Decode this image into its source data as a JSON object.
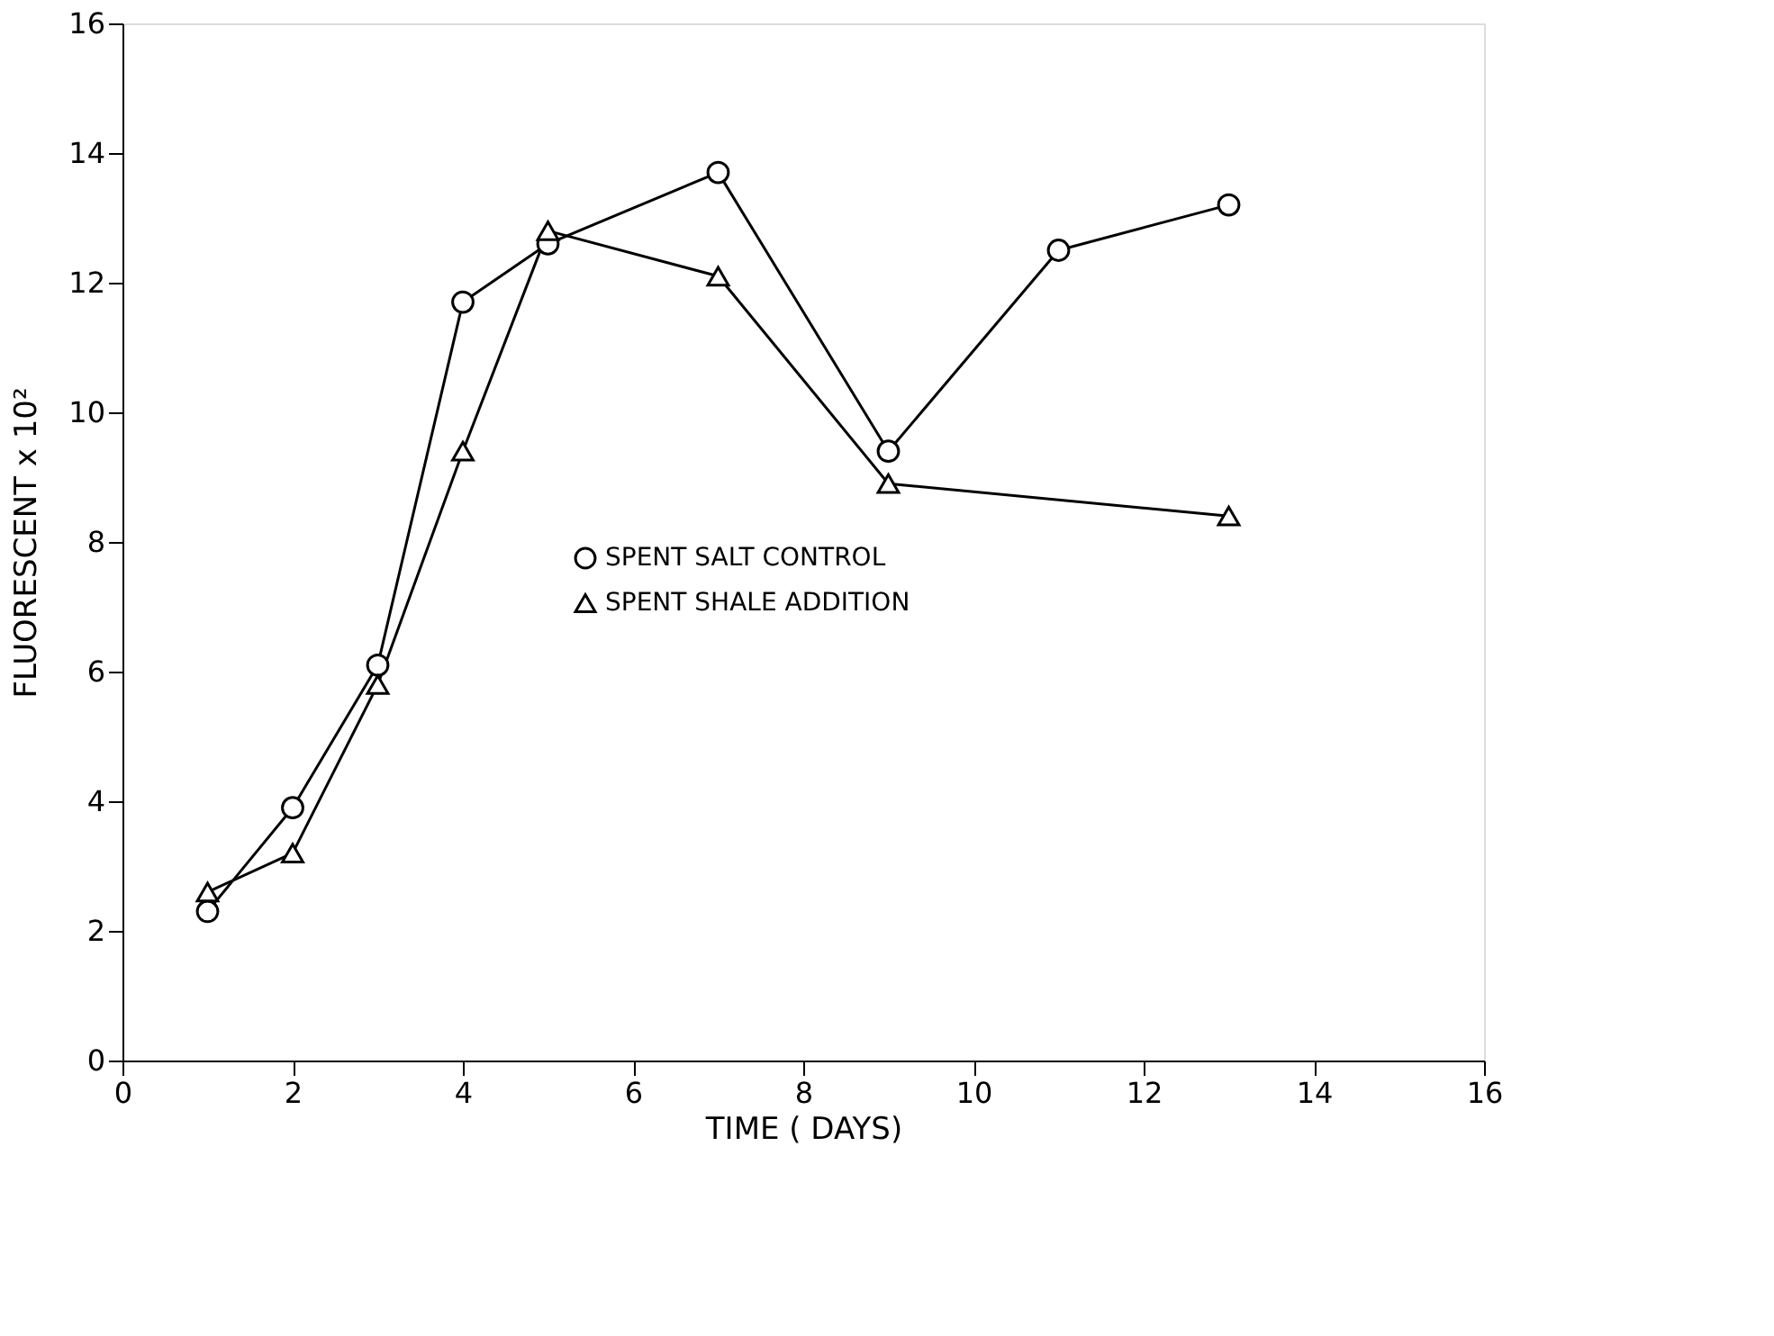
{
  "chart_data": {
    "type": "line",
    "xlabel": "TIME ( DAYS)",
    "ylabel": "FLUORESCENT x 10²",
    "xlim": [
      0,
      16
    ],
    "xticks": [
      0,
      2,
      4,
      6,
      8,
      10,
      12,
      14,
      16
    ],
    "ylim": [
      0,
      16
    ],
    "yticks": [
      0,
      2,
      4,
      6,
      8,
      10,
      12,
      14,
      16
    ],
    "grid": false,
    "legend": "left",
    "series": [
      {
        "name": "SPENT SALT CONTROL",
        "color": "#000000",
        "marker": "circle",
        "x": [
          1,
          2,
          3,
          4,
          5,
          7,
          9,
          11,
          13
        ],
        "values": [
          2.3,
          3.9,
          6.1,
          11.7,
          12.6,
          13.7,
          9.4,
          12.5,
          13.2
        ]
      },
      {
        "name": "SPENT SHALE ADDITION",
        "color": "#000000",
        "marker": "triangle",
        "x": [
          1,
          2,
          3,
          4,
          5,
          7,
          9,
          13
        ],
        "values": [
          2.6,
          3.2,
          5.8,
          9.4,
          12.8,
          12.1,
          8.9,
          8.4
        ]
      }
    ]
  }
}
